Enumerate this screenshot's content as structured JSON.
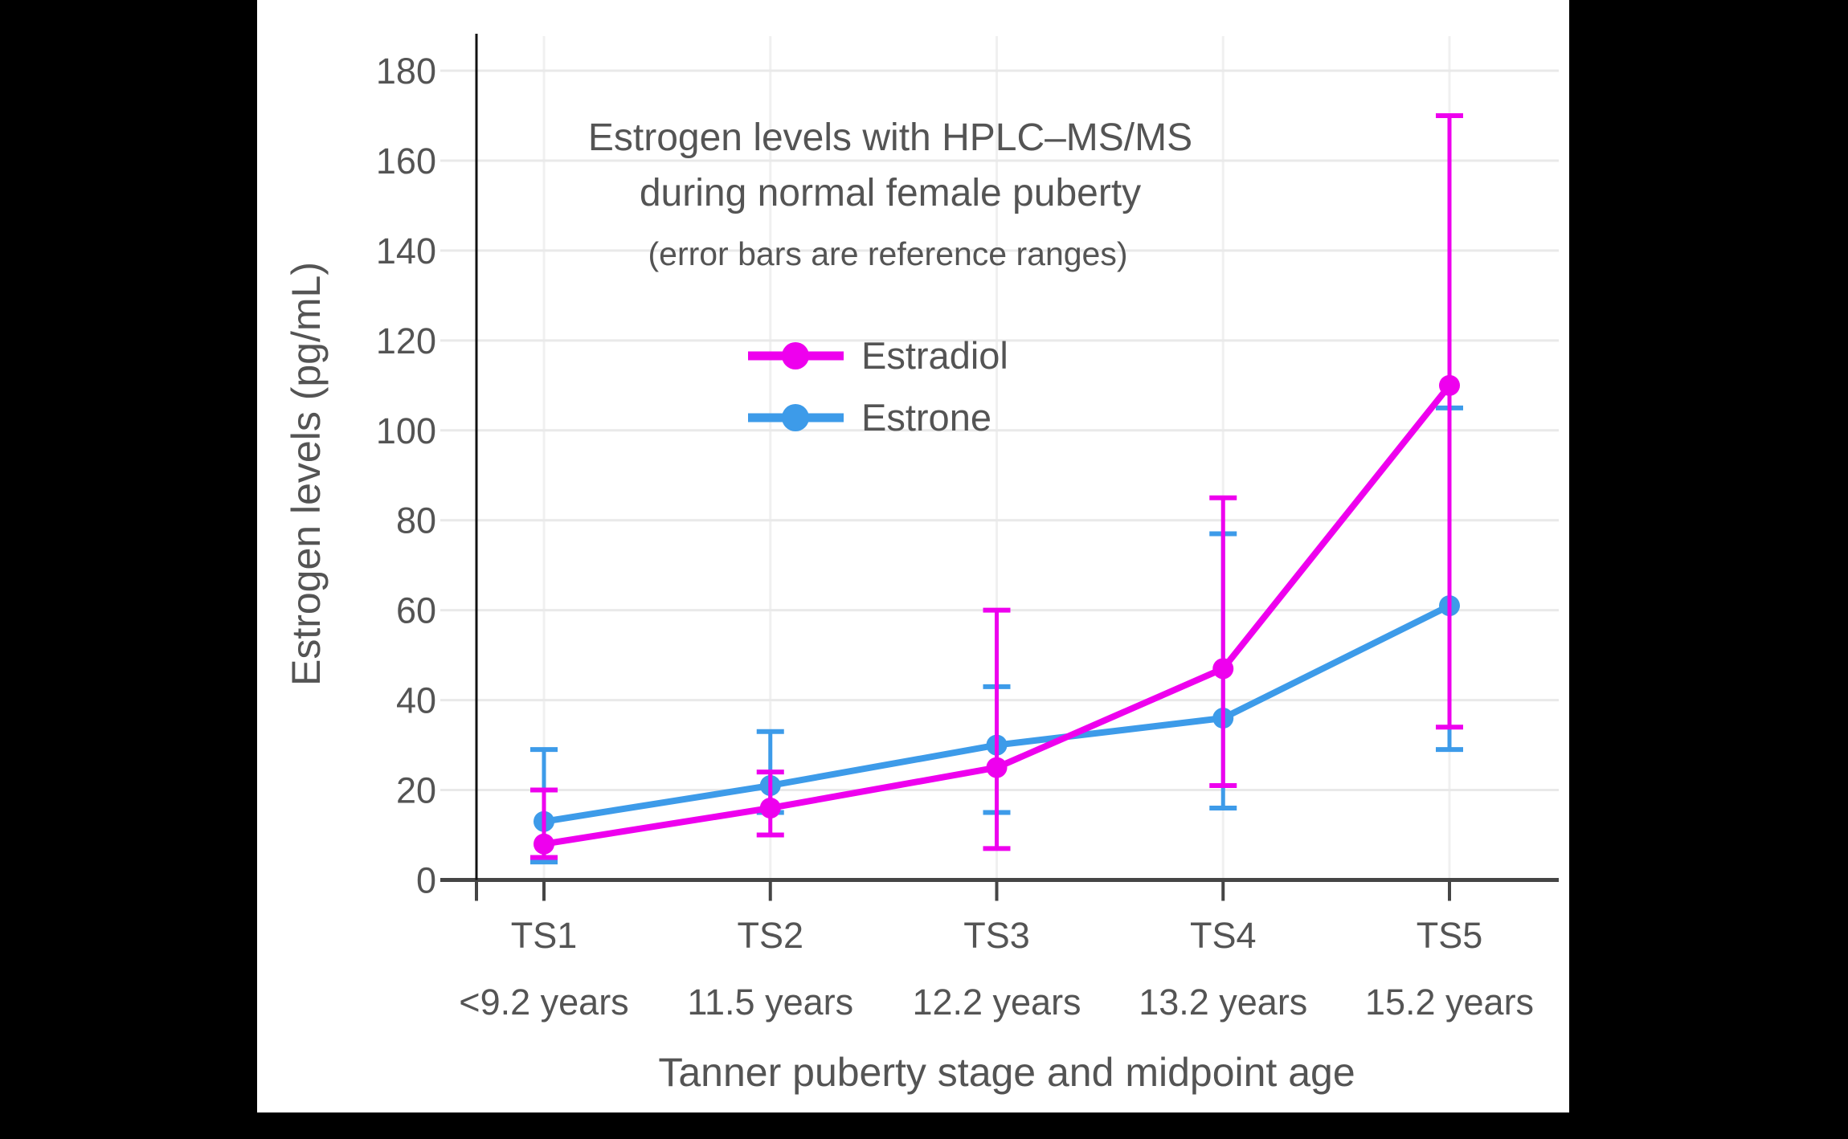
{
  "page": {
    "background_color": "#000000",
    "panel_color": "#ffffff"
  },
  "chart_data": {
    "type": "line",
    "title_line1": "Estrogen levels with HPLC–MS/MS",
    "title_line2": "during normal female puberty",
    "subtitle": "(error bars are reference ranges)",
    "xlabel": "Tanner puberty stage and midpoint age",
    "ylabel": "Estrogen levels (pg/mL)",
    "ylim": [
      0,
      180
    ],
    "yticks": [
      0,
      20,
      40,
      60,
      80,
      100,
      120,
      140,
      160,
      180
    ],
    "grid": true,
    "legend_position": "inside-upper-middle",
    "error_bars": "reference ranges",
    "categories": [
      {
        "stage": "TS1",
        "age": "<9.2 years"
      },
      {
        "stage": "TS2",
        "age": "11.5 years"
      },
      {
        "stage": "TS3",
        "age": "12.2 years"
      },
      {
        "stage": "TS4",
        "age": "13.2 years"
      },
      {
        "stage": "TS5",
        "age": "15.2 years"
      }
    ],
    "series": [
      {
        "name": "Estradiol",
        "color": "#EE00EE",
        "values": [
          8,
          16,
          25,
          47,
          110
        ],
        "range_low": [
          5,
          10,
          7,
          21,
          34
        ],
        "range_high": [
          20,
          24,
          60,
          85,
          170
        ]
      },
      {
        "name": "Estrone",
        "color": "#3D9BE9",
        "values": [
          13,
          21,
          30,
          36,
          61
        ],
        "range_low": [
          4,
          15,
          15,
          16,
          29
        ],
        "range_high": [
          29,
          33,
          43,
          77,
          105
        ]
      }
    ],
    "text_color": "#545454",
    "axis_color": "#454545",
    "grid_color": "#E9E9E9"
  }
}
